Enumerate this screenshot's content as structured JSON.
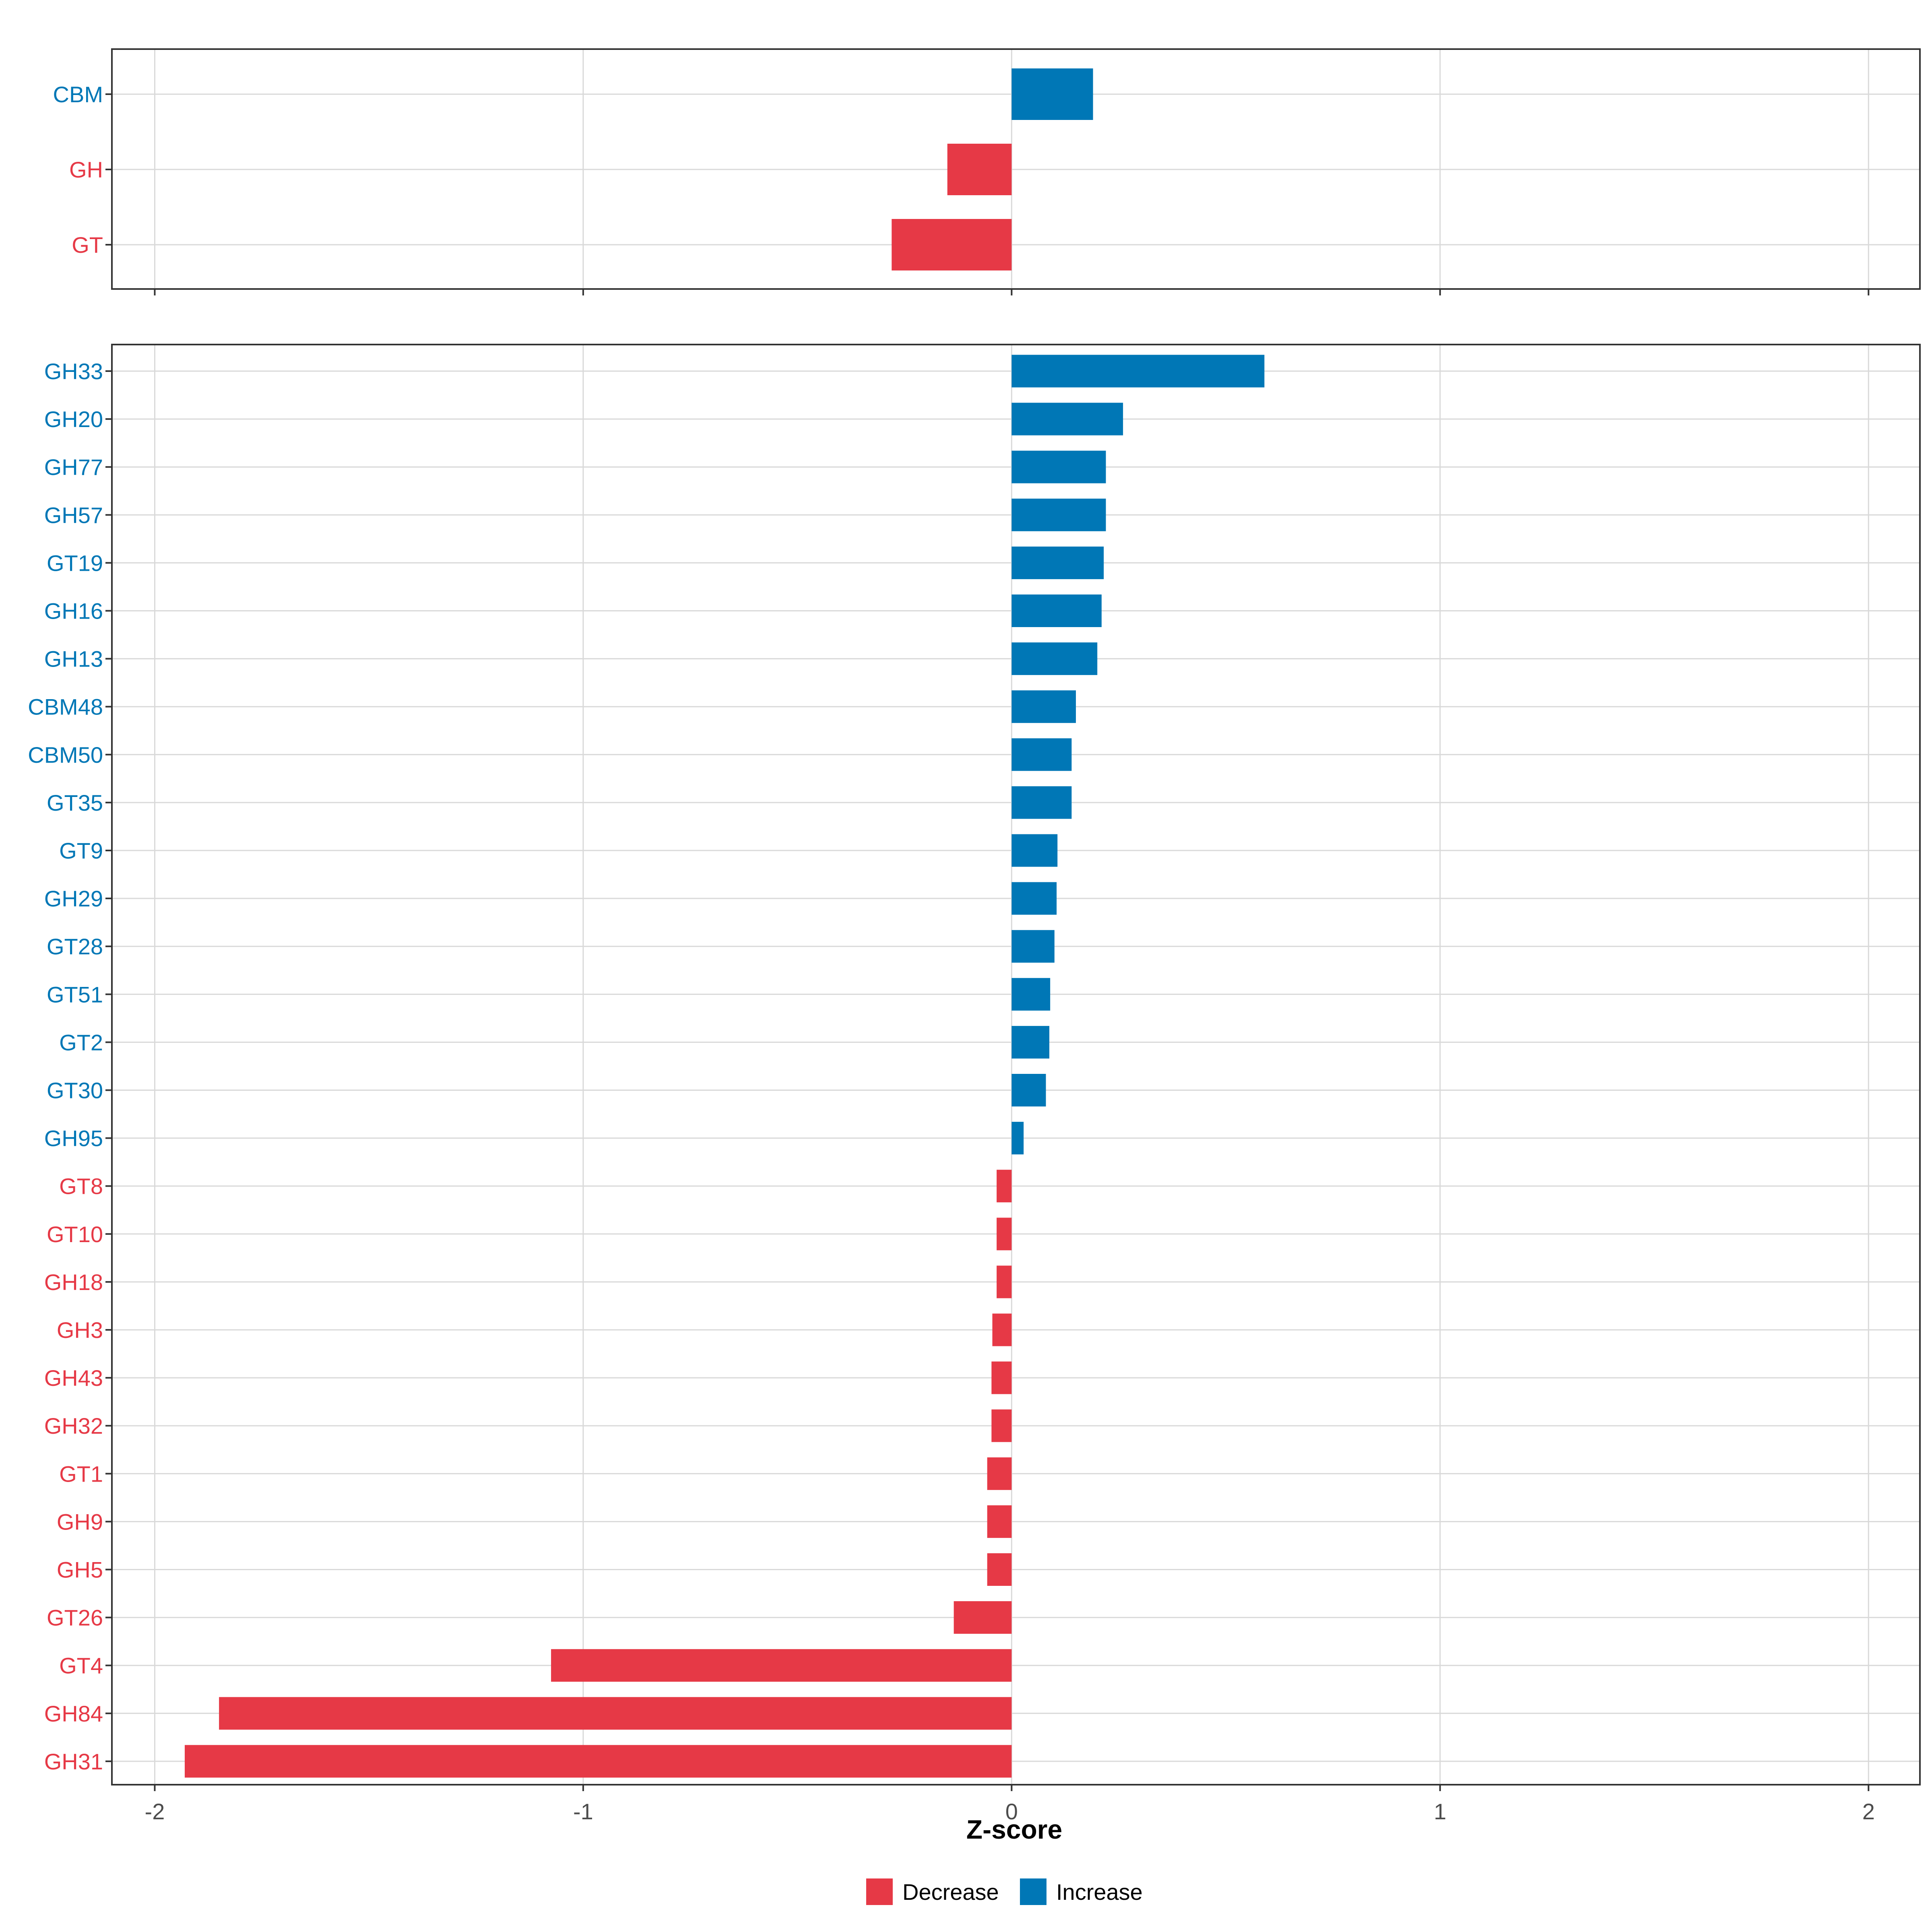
{
  "colors": {
    "decrease": "#E63946",
    "increase": "#0077B6",
    "grid": "#D9D9D9",
    "panel_border": "#333333",
    "tick_text": "#4D4D4D"
  },
  "chart_data": {
    "type": "bar",
    "orientation": "horizontal",
    "xlabel": "Z-score",
    "xlim": [
      -2.1,
      2.12
    ],
    "xticks": [
      -2,
      -1,
      0,
      1,
      2
    ],
    "xtick_labels": [
      "-2",
      "-1",
      "0",
      "1",
      "2"
    ],
    "grid": true,
    "legend": {
      "placement": "bottom-center",
      "items": [
        {
          "key": "decrease",
          "label": "Decrease"
        },
        {
          "key": "increase",
          "label": "Increase"
        }
      ]
    },
    "panels": [
      {
        "name": "top",
        "categories": [
          "CBM",
          "GH",
          "GT"
        ],
        "values": [
          0.19,
          -0.15,
          -0.28
        ]
      },
      {
        "name": "bottom",
        "categories": [
          "GH33",
          "GH20",
          "GH77",
          "GH57",
          "GT19",
          "GH16",
          "GH13",
          "CBM48",
          "CBM50",
          "GT35",
          "GT9",
          "GH29",
          "GT28",
          "GT51",
          "GT2",
          "GT30",
          "GH95",
          "GT8",
          "GT10",
          "GH18",
          "GH3",
          "GH43",
          "GH32",
          "GT1",
          "GH9",
          "GH5",
          "GT26",
          "GT4",
          "GH84",
          "GH31"
        ],
        "values": [
          0.59,
          0.26,
          0.22,
          0.22,
          0.215,
          0.21,
          0.2,
          0.15,
          0.14,
          0.14,
          0.107,
          0.105,
          0.1,
          0.09,
          0.088,
          0.08,
          0.028,
          -0.035,
          -0.035,
          -0.035,
          -0.045,
          -0.047,
          -0.047,
          -0.057,
          -0.057,
          -0.057,
          -0.135,
          -1.075,
          -1.85,
          -1.93
        ]
      }
    ]
  }
}
